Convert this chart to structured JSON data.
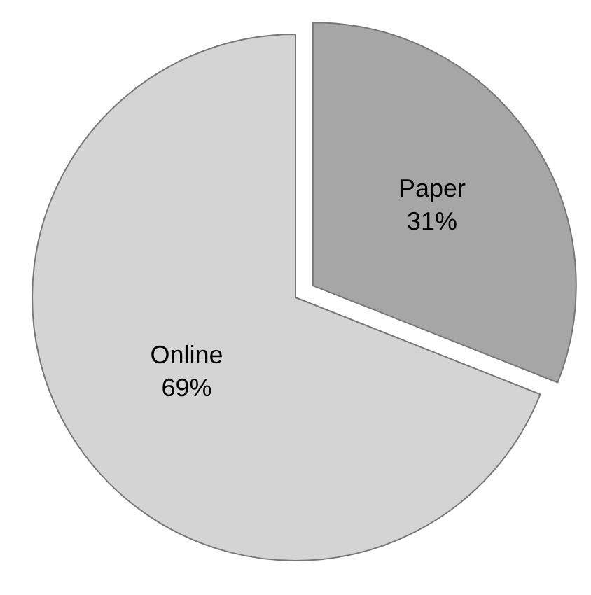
{
  "chart_data": {
    "type": "pie",
    "categories": [
      "Paper",
      "Online"
    ],
    "values": [
      31,
      69
    ],
    "value_labels": [
      "31%",
      "69%"
    ],
    "colors": [
      "#a6a6a6",
      "#d4d4d4"
    ]
  }
}
